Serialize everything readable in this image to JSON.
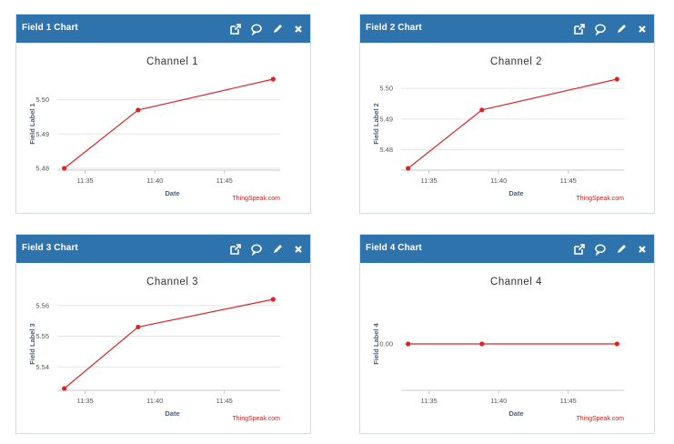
{
  "cards": [
    {
      "title": "Field 1 Chart",
      "chart_data": {
        "type": "line",
        "title": "Channel 1",
        "xlabel": "Date",
        "ylabel": "Field Label 1",
        "x_ticks": [
          "11:35",
          "11:40",
          "11:45"
        ],
        "x": [
          "11:33.5",
          "11:38.8",
          "11:48.5"
        ],
        "values": [
          5.48,
          5.497,
          5.506
        ],
        "y_ticks": [
          "5.48",
          "5.49",
          "5.50"
        ],
        "ylim": [
          5.48,
          5.506
        ],
        "xlim": [
          "11:33",
          "11:49"
        ],
        "line_color": "#d62728",
        "credit": "ThingSpeak.com"
      }
    },
    {
      "title": "Field 2 Chart",
      "chart_data": {
        "type": "line",
        "title": "Channel 2",
        "xlabel": "Date",
        "ylabel": "Field Label 2",
        "x_ticks": [
          "11:35",
          "11:40",
          "11:45"
        ],
        "x": [
          "11:33.5",
          "11:38.8",
          "11:48.5"
        ],
        "values": [
          5.474,
          5.493,
          5.503
        ],
        "y_ticks": [
          "5.48",
          "5.49",
          "5.50"
        ],
        "ylim": [
          5.474,
          5.503
        ],
        "xlim": [
          "11:33",
          "11:49"
        ],
        "line_color": "#d62728",
        "credit": "ThingSpeak.com"
      }
    },
    {
      "title": "Field 3 Chart",
      "chart_data": {
        "type": "line",
        "title": "Channel 3",
        "xlabel": "Date",
        "ylabel": "Field Label 3",
        "x_ticks": [
          "11:35",
          "11:40",
          "11:45"
        ],
        "x": [
          "11:33.5",
          "11:38.8",
          "11:48.5"
        ],
        "values": [
          5.533,
          5.553,
          5.562
        ],
        "y_ticks": [
          "5.54",
          "5.55",
          "5.56"
        ],
        "ylim": [
          5.533,
          5.562
        ],
        "xlim": [
          "11:33",
          "11:49"
        ],
        "line_color": "#d62728",
        "credit": "ThingSpeak.com"
      }
    },
    {
      "title": "Field 4 Chart",
      "chart_data": {
        "type": "line",
        "title": "Channel 4",
        "xlabel": "Date",
        "ylabel": "Field Label 4",
        "x_ticks": [
          "11:35",
          "11:40",
          "11:45"
        ],
        "x": [
          "11:33.5",
          "11:38.8",
          "11:48.5"
        ],
        "values": [
          0.0,
          0.0,
          0.0
        ],
        "y_ticks": [
          "0.00"
        ],
        "ylim": [
          -1,
          1
        ],
        "xlim": [
          "11:33",
          "11:49"
        ],
        "line_color": "#d62728",
        "credit": "ThingSpeak.com"
      }
    }
  ],
  "header_icons": [
    "external-link-icon",
    "comment-icon",
    "pencil-icon",
    "close-icon"
  ],
  "colors": {
    "header": "#2f73ad",
    "line": "#d62728",
    "credit": "#c02020",
    "grid": "#e6e6e6"
  }
}
